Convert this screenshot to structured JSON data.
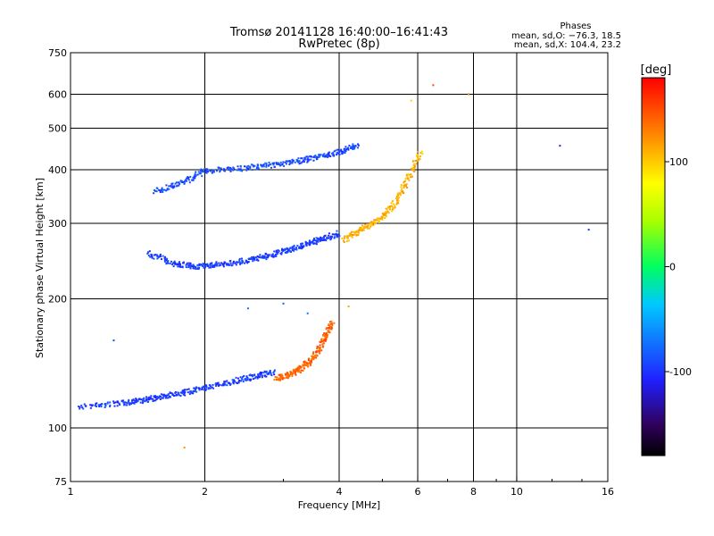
{
  "chart_data": {
    "type": "scatter",
    "title": "Tromsø 20141128 16:40:00–16:41:43",
    "subtitle": "RwPretec (8p)",
    "stats": {
      "heading": "Phases",
      "line1": "mean, sd,O: −76.3, 18.5",
      "line2": "mean, sd,X: 104.4, 23.2"
    },
    "xlabel": "Frequency [MHz]",
    "ylabel": "Stationary phase Virtual Height [km]",
    "x_scale": "log",
    "y_scale": "log",
    "xlim": [
      1,
      16
    ],
    "ylim": [
      75,
      750
    ],
    "xticks": [
      1,
      2,
      4,
      6,
      8,
      10,
      16
    ],
    "yticks": [
      75,
      100,
      200,
      300,
      400,
      500,
      600,
      750
    ],
    "grid_x": [
      2,
      4,
      6,
      8,
      10
    ],
    "grid_y": [
      100,
      200,
      300,
      400,
      500,
      600
    ],
    "colorbar": {
      "label": "[deg]",
      "range": [
        -180,
        180
      ],
      "ticks": [
        100,
        0,
        -100
      ]
    },
    "traces": [
      {
        "name": "O-mode lower trace",
        "x": [
          1.05,
          1.3,
          1.45,
          1.6,
          1.8,
          2.0,
          2.3,
          2.6,
          2.85
        ],
        "y": [
          112,
          114,
          116,
          118,
          121,
          124,
          128,
          132,
          135
        ],
        "phase": -95
      },
      {
        "name": "X-mode lower trace",
        "x": [
          2.9,
          3.1,
          3.3,
          3.5,
          3.7,
          3.85
        ],
        "y": [
          130,
          133,
          138,
          145,
          160,
          175
        ],
        "phase": 140
      },
      {
        "name": "O-mode F1 trace",
        "x": [
          1.5,
          1.7,
          1.9,
          2.1,
          2.4,
          2.7,
          3.0,
          3.3,
          3.6,
          4.0
        ],
        "y": [
          255,
          242,
          238,
          240,
          244,
          250,
          258,
          266,
          274,
          284
        ],
        "phase": -95
      },
      {
        "name": "O-mode F2 trace",
        "x": [
          1.55,
          1.8,
          2.0,
          2.4,
          2.8,
          3.2,
          3.6,
          4.0,
          4.4
        ],
        "y": [
          355,
          375,
          398,
          402,
          410,
          418,
          428,
          440,
          455
        ],
        "phase": -90
      },
      {
        "name": "X-mode F trace",
        "x": [
          4.1,
          4.5,
          4.9,
          5.3,
          5.7,
          6.1
        ],
        "y": [
          275,
          290,
          305,
          330,
          380,
          440
        ],
        "phase": 110
      }
    ],
    "scatter": [
      {
        "x": 2.5,
        "y": 190,
        "phase": -75
      },
      {
        "x": 3.0,
        "y": 195,
        "phase": -80
      },
      {
        "x": 3.4,
        "y": 185,
        "phase": -70
      },
      {
        "x": 4.2,
        "y": 192,
        "phase": 115
      },
      {
        "x": 5.8,
        "y": 580,
        "phase": 95
      },
      {
        "x": 6.5,
        "y": 630,
        "phase": 150
      },
      {
        "x": 7.8,
        "y": 600,
        "phase": 130
      },
      {
        "x": 12.5,
        "y": 455,
        "phase": -110
      },
      {
        "x": 14.5,
        "y": 290,
        "phase": -100
      },
      {
        "x": 1.25,
        "y": 160,
        "phase": -90
      },
      {
        "x": 1.8,
        "y": 90,
        "phase": 120
      }
    ]
  }
}
